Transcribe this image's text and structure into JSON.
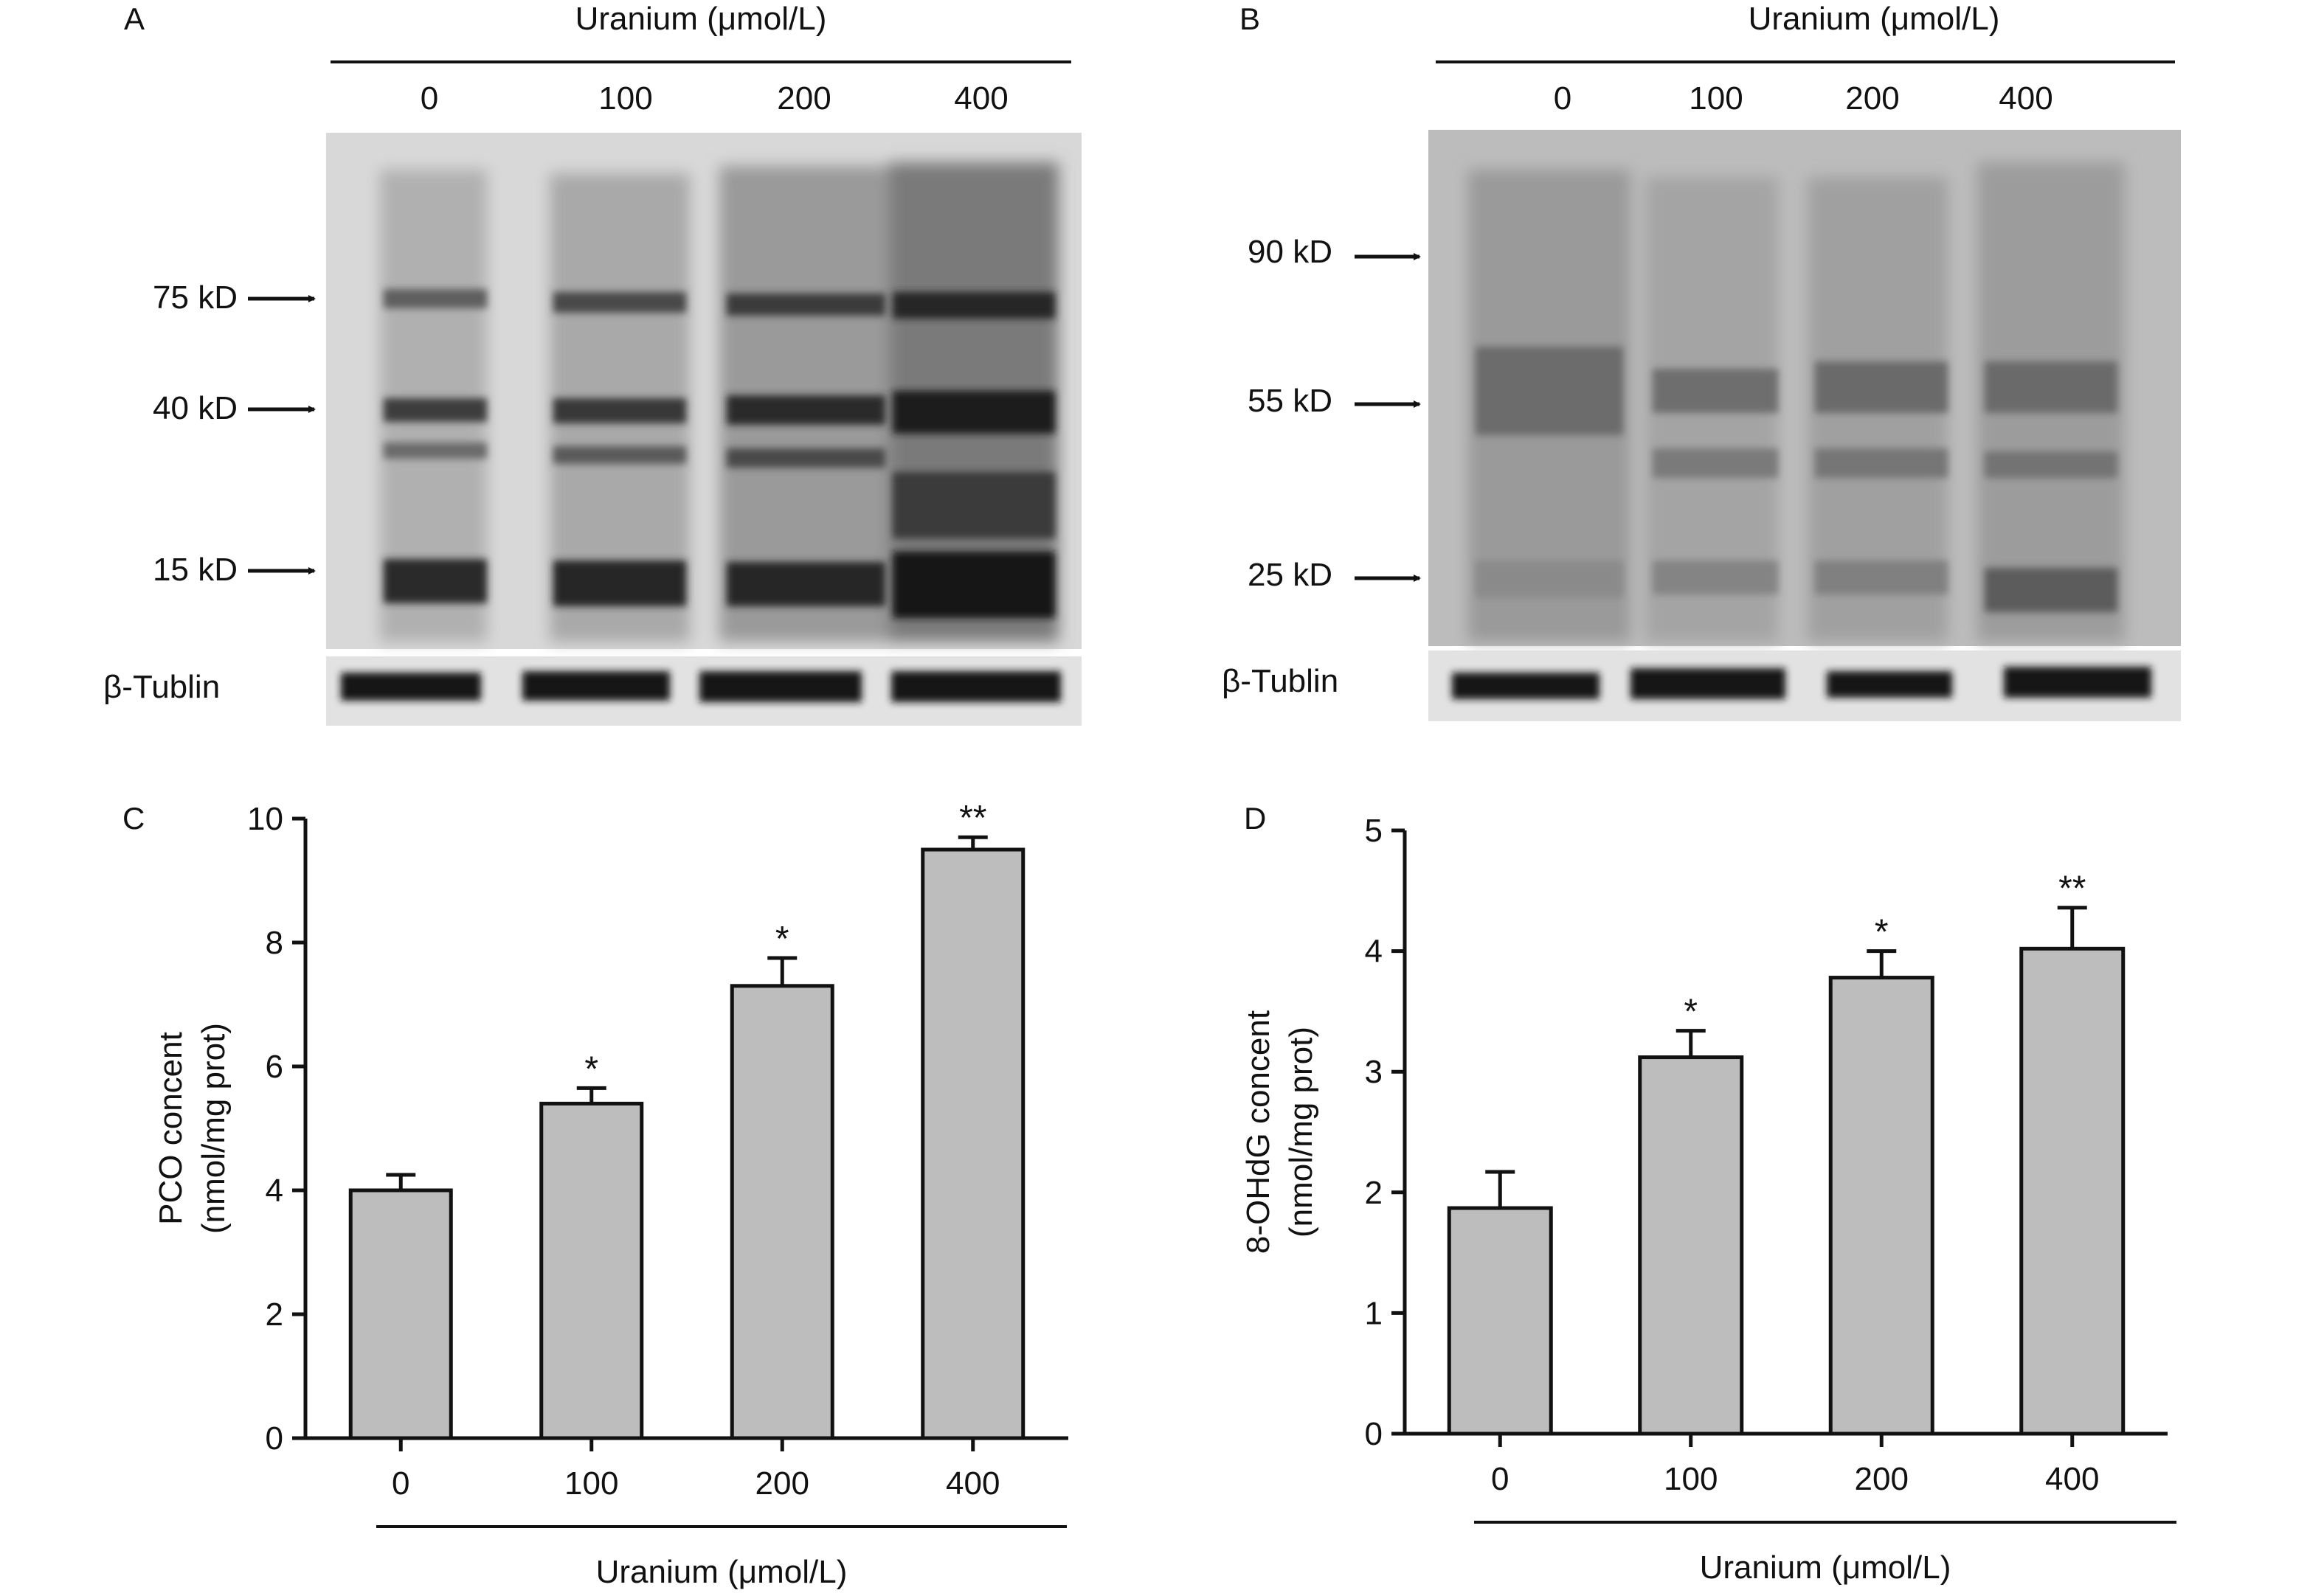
{
  "panels": {
    "A": {
      "label": "A",
      "header": "Uranium (μmol/L)",
      "lanes": [
        "0",
        "100",
        "200",
        "400"
      ],
      "markers": [
        "75 kD",
        "40 kD",
        "15 kD"
      ],
      "loading_label": "β-Tublin"
    },
    "B": {
      "label": "B",
      "header": "Uranium (μmol/L)",
      "lanes": [
        "0",
        "100",
        "200",
        "400"
      ],
      "markers": [
        "90 kD",
        "55 kD",
        "25 kD"
      ],
      "loading_label": "β-Tublin"
    },
    "C": {
      "label": "C"
    },
    "D": {
      "label": "D"
    }
  },
  "chart_data": [
    {
      "type": "bar",
      "panel": "C",
      "categories": [
        "0",
        "100",
        "200",
        "400"
      ],
      "values": [
        4.0,
        5.4,
        7.3,
        9.5
      ],
      "errors": [
        0.25,
        0.25,
        0.45,
        0.2
      ],
      "significance": [
        "",
        "*",
        "*",
        "**"
      ],
      "xlabel": "Uranium (μmol/L)",
      "ylabel": [
        "PCO concent",
        "(nmol/mg prot)"
      ],
      "ylim": [
        0,
        10
      ],
      "yticks": [
        "0",
        "2",
        "4",
        "6",
        "8",
        "10"
      ],
      "bar_color": "#bdbdbd"
    },
    {
      "type": "bar",
      "panel": "D",
      "categories": [
        "0",
        "100",
        "200",
        "400"
      ],
      "values": [
        1.87,
        3.12,
        3.78,
        4.02
      ],
      "errors": [
        0.3,
        0.22,
        0.22,
        0.34
      ],
      "significance": [
        "",
        "*",
        "*",
        "**"
      ],
      "xlabel": "Uranium (μmol/L)",
      "ylabel": [
        "8-OHdG concent",
        "(nmol/mg prot)"
      ],
      "ylim": [
        0,
        5
      ],
      "yticks": [
        "0",
        "1",
        "2",
        "3",
        "4",
        "5"
      ],
      "bar_color": "#bdbdbd"
    }
  ]
}
